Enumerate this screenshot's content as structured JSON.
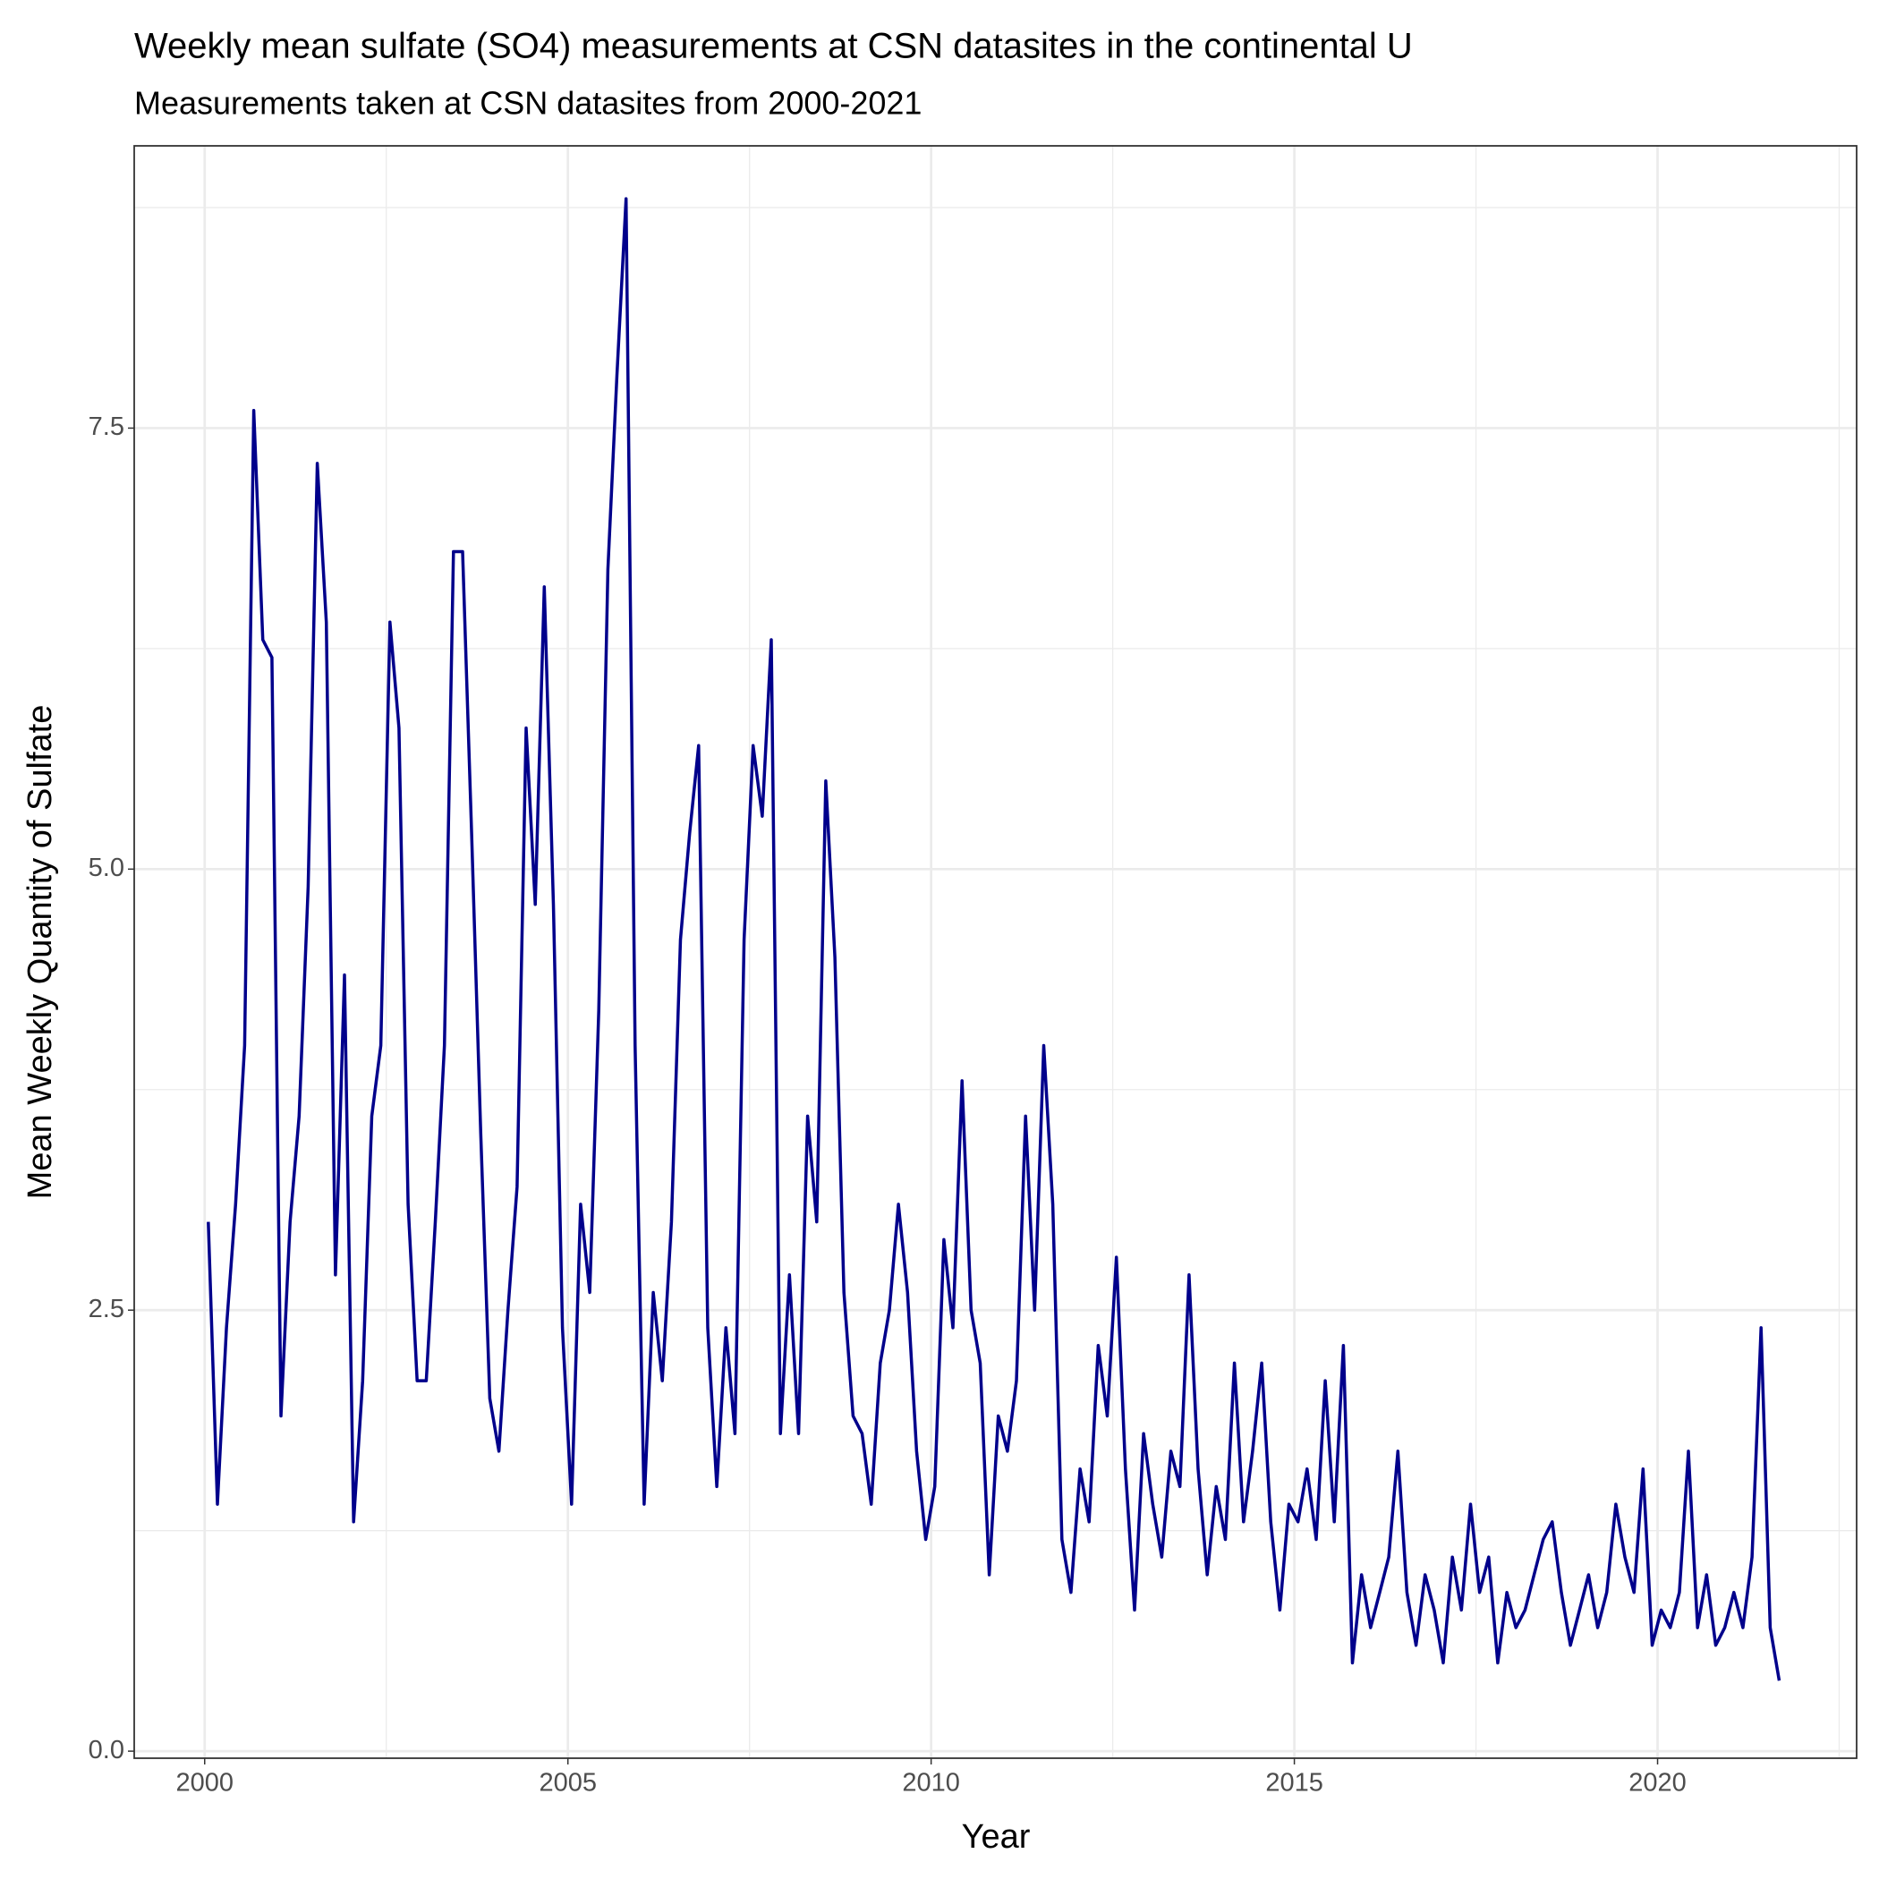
{
  "chart_data": {
    "type": "line",
    "title": "Weekly mean sulfate (SO4) measurements at CSN datasites in the continental U",
    "subtitle": "Measurements taken at CSN datasites from 2000-2021",
    "xlabel": "Year",
    "ylabel": "Mean Weekly Quantity of Sulfate",
    "xlim": [
      1999.03,
      2022.74
    ],
    "ylim": [
      -0.04,
      9.1
    ],
    "xticks": [
      2000,
      2005,
      2010,
      2015,
      2020
    ],
    "yticks": [
      {
        "value": 0,
        "label": "0.0"
      },
      2.5,
      {
        "value": 5,
        "label": "5.0"
      },
      7.5
    ],
    "xminor": [
      2002.5,
      2007.5,
      2012.5,
      2017.5,
      2022.5
    ],
    "yminor": [
      1.25,
      3.75,
      6.25,
      8.75
    ],
    "grid": true,
    "x": [
      2000.05,
      2000.175,
      2000.3,
      2000.425,
      2000.55,
      2000.675,
      2000.8,
      2000.925,
      2001.05,
      2001.175,
      2001.3,
      2001.425,
      2001.55,
      2001.675,
      2001.8,
      2001.925,
      2002.05,
      2002.175,
      2002.3,
      2002.425,
      2002.55,
      2002.675,
      2002.8,
      2002.925,
      2003.05,
      2003.175,
      2003.3,
      2003.425,
      2003.55,
      2003.675,
      2003.8,
      2003.925,
      2004.05,
      2004.175,
      2004.3,
      2004.425,
      2004.55,
      2004.675,
      2004.8,
      2004.925,
      2005.05,
      2005.175,
      2005.3,
      2005.425,
      2005.55,
      2005.675,
      2005.8,
      2005.925,
      2006.05,
      2006.175,
      2006.3,
      2006.425,
      2006.55,
      2006.675,
      2006.8,
      2006.925,
      2007.05,
      2007.175,
      2007.3,
      2007.425,
      2007.55,
      2007.675,
      2007.8,
      2007.925,
      2008.05,
      2008.175,
      2008.3,
      2008.425,
      2008.55,
      2008.675,
      2008.8,
      2008.925,
      2009.05,
      2009.175,
      2009.3,
      2009.425,
      2009.55,
      2009.675,
      2009.8,
      2009.925,
      2010.05,
      2010.175,
      2010.3,
      2010.425,
      2010.55,
      2010.675,
      2010.8,
      2010.925,
      2011.05,
      2011.175,
      2011.3,
      2011.425,
      2011.55,
      2011.675,
      2011.8,
      2011.925,
      2012.05,
      2012.175,
      2012.3,
      2012.425,
      2012.55,
      2012.675,
      2012.8,
      2012.925,
      2013.05,
      2013.175,
      2013.3,
      2013.425,
      2013.55,
      2013.675,
      2013.8,
      2013.925,
      2014.05,
      2014.175,
      2014.3,
      2014.425,
      2014.55,
      2014.675,
      2014.8,
      2014.925,
      2015.05,
      2015.175,
      2015.3,
      2015.425,
      2015.55,
      2015.675,
      2015.8,
      2015.925,
      2016.05,
      2016.175,
      2016.3,
      2016.425,
      2016.55,
      2016.675,
      2016.8,
      2016.925,
      2017.05,
      2017.175,
      2017.3,
      2017.425,
      2017.55,
      2017.675,
      2017.8,
      2017.925,
      2018.05,
      2018.175,
      2018.3,
      2018.425,
      2018.55,
      2018.675,
      2018.8,
      2018.925,
      2019.05,
      2019.175,
      2019.3,
      2019.425,
      2019.55,
      2019.675,
      2019.8,
      2019.925,
      2020.05,
      2020.175,
      2020.3,
      2020.425,
      2020.55,
      2020.675,
      2020.8,
      2020.925,
      2021.05,
      2021.175,
      2021.3,
      2021.425,
      2021.55,
      2021.675
    ],
    "series": [
      {
        "color": "#00008B",
        "values": [
          3.0,
          1.4,
          2.4,
          3.1,
          4.0,
          7.6,
          6.3,
          6.2,
          1.9,
          3.0,
          3.6,
          4.9,
          7.3,
          6.4,
          2.7,
          4.4,
          1.3,
          2.1,
          3.6,
          4.0,
          6.4,
          5.8,
          3.1,
          2.1,
          2.1,
          3.0,
          4.0,
          6.8,
          6.8,
          5.2,
          3.5,
          2.0,
          1.7,
          2.5,
          3.2,
          5.8,
          4.8,
          6.6,
          4.8,
          2.4,
          1.4,
          3.1,
          2.6,
          4.2,
          6.7,
          7.8,
          8.8,
          4.0,
          1.4,
          2.6,
          2.1,
          3.0,
          4.6,
          5.2,
          5.7,
          2.4,
          1.5,
          2.4,
          1.8,
          4.6,
          5.7,
          5.3,
          6.3,
          1.8,
          2.7,
          1.8,
          3.6,
          3.0,
          5.5,
          4.5,
          2.6,
          1.9,
          1.8,
          1.4,
          2.2,
          2.5,
          3.1,
          2.6,
          1.7,
          1.2,
          1.5,
          2.9,
          2.4,
          3.8,
          2.5,
          2.2,
          1.0,
          1.9,
          1.7,
          2.1,
          3.6,
          2.5,
          4.0,
          3.1,
          1.2,
          0.9,
          1.6,
          1.3,
          2.3,
          1.9,
          2.8,
          1.6,
          0.8,
          1.8,
          1.4,
          1.1,
          1.7,
          1.5,
          2.7,
          1.6,
          1.0,
          1.5,
          1.2,
          2.2,
          1.3,
          1.7,
          2.2,
          1.3,
          0.8,
          1.4,
          1.3,
          1.6,
          1.2,
          2.1,
          1.3,
          2.3,
          0.5,
          1.0,
          0.7,
          0.9,
          1.1,
          1.7,
          0.9,
          0.6,
          1.0,
          0.8,
          0.5,
          1.1,
          0.8,
          1.4,
          0.9,
          1.1,
          0.5,
          0.9,
          0.7,
          0.8,
          1.0,
          1.2,
          1.3,
          0.9,
          0.6,
          0.8,
          1.0,
          0.7,
          0.9,
          1.4,
          1.1,
          0.9,
          1.6,
          0.6,
          0.8,
          0.7,
          0.9,
          1.7,
          0.7,
          1.0,
          0.6,
          0.7,
          0.9,
          0.7,
          1.1,
          2.4,
          0.7,
          0.4
        ]
      }
    ]
  }
}
